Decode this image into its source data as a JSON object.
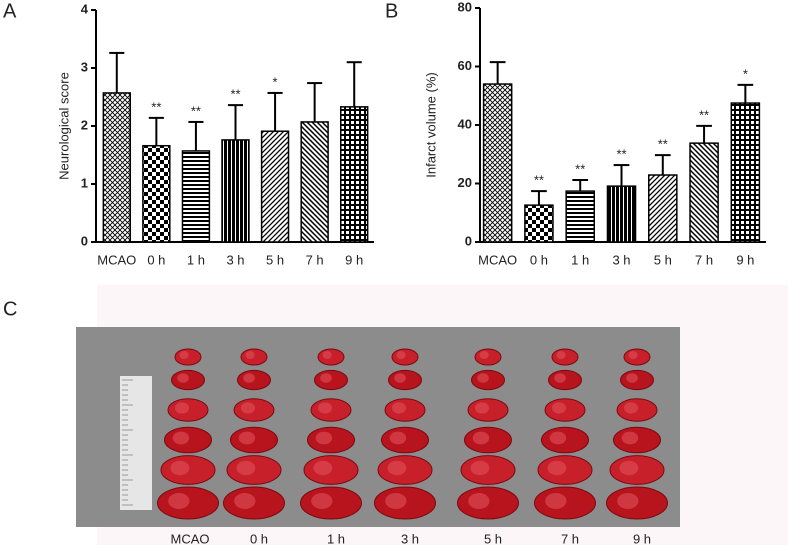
{
  "chart_data": [
    {
      "type": "bar",
      "panel_label": "A",
      "y_label": "Neurological score",
      "categories": [
        "MCAO",
        "0 h",
        "1 h",
        "3 h",
        "5 h",
        "7 h",
        "9 h"
      ],
      "values": [
        2.57,
        1.66,
        1.57,
        1.76,
        1.91,
        2.07,
        2.33
      ],
      "errors": [
        0.69,
        0.48,
        0.5,
        0.6,
        0.66,
        0.67,
        0.77
      ],
      "significance": [
        null,
        "**",
        "**",
        "**",
        "*",
        null,
        null
      ],
      "ylim": [
        0,
        4
      ],
      "yticks": [
        0,
        1,
        2,
        3,
        4
      ],
      "color": "#000000"
    },
    {
      "type": "bar",
      "panel_label": "B",
      "y_label": "Infarct volume (%)",
      "categories": [
        "MCAO",
        "0 h",
        "1 h",
        "3 h",
        "5 h",
        "7 h",
        "9 h"
      ],
      "values": [
        54,
        12.6,
        17.4,
        19.1,
        22.9,
        33.8,
        47.5
      ],
      "errors": [
        7.5,
        4.8,
        3.8,
        7.2,
        6.8,
        5.9,
        6.2
      ],
      "significance": [
        null,
        "**",
        "**",
        "**",
        "**",
        "**",
        "*"
      ],
      "ylim": [
        0,
        80
      ],
      "yticks": [
        0,
        20,
        40,
        60,
        80
      ],
      "color": "#000000"
    }
  ],
  "photo_panel": {
    "panel_label": "C",
    "columns": [
      "MCAO",
      "0 h",
      "1 h",
      "3 h",
      "5 h",
      "7 h",
      "9 h"
    ]
  }
}
